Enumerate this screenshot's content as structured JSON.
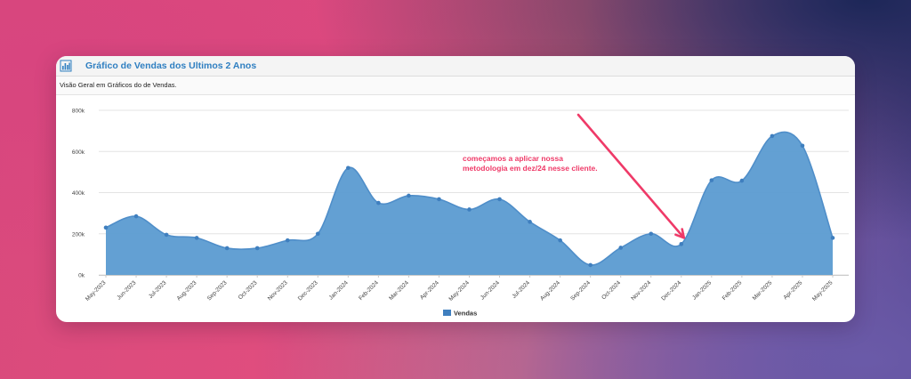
{
  "panel": {
    "title": "Gráfico de Vendas dos Ultimos 2 Anos",
    "subtitle": "Visão Geral em Gráficos do de Vendas.",
    "icon": "bar-chart-icon"
  },
  "colors": {
    "series": "#4f8ec9",
    "series_fill": "#5b9bd1",
    "annotation": "#ef3a68",
    "title": "#2f7fc1"
  },
  "chart_data": {
    "type": "area",
    "x": [
      "May-2023",
      "Jun-2023",
      "Jul-2023",
      "Aug-2023",
      "Sep-2023",
      "Oct-2023",
      "Nov-2023",
      "Dec-2023",
      "Jan-2024",
      "Feb-2024",
      "Mar-2024",
      "Apr-2024",
      "May-2024",
      "Jun-2024",
      "Jul-2024",
      "Aug-2024",
      "Sep-2024",
      "Oct-2024",
      "Nov-2024",
      "Dec-2024",
      "Jan-2025",
      "Feb-2025",
      "Mar-2025",
      "Apr-2025",
      "May-2025"
    ],
    "series": [
      {
        "name": "Vendas",
        "values": [
          230000,
          285000,
          195000,
          180000,
          130000,
          130000,
          168000,
          200000,
          520000,
          350000,
          385000,
          368000,
          318000,
          368000,
          258000,
          168000,
          48000,
          132000,
          200000,
          150000,
          460000,
          458000,
          675000,
          628000,
          180000
        ]
      }
    ],
    "y_ticks": [
      "0k",
      "200k",
      "400k",
      "600k",
      "800k"
    ],
    "ylim": [
      0,
      800000
    ],
    "grid": true,
    "legend": "bottom-center",
    "annotation": {
      "lines": [
        "começamos a aplicar nossa",
        "metodologia em dez/24 nesse cliente."
      ],
      "points_to": "Dec-2024"
    }
  }
}
